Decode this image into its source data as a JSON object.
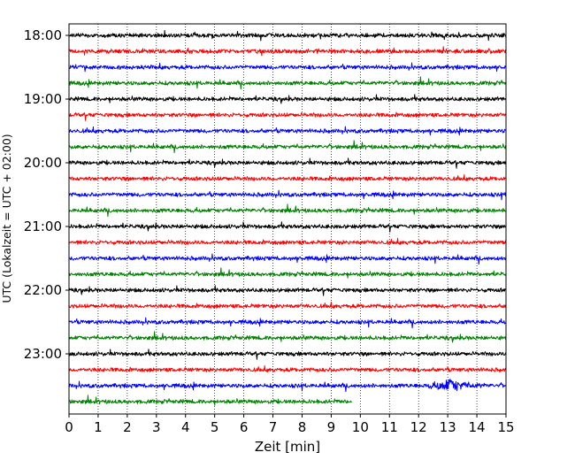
{
  "chart_data": {
    "type": "line",
    "title": "",
    "xlabel": "Zeit  [min]",
    "ylabel": "UTC (Lokalzeit = UTC + 02:00)",
    "xlim": [
      0,
      15
    ],
    "x_ticks": [
      "0",
      "1",
      "2",
      "3",
      "4",
      "5",
      "6",
      "7",
      "8",
      "9",
      "10",
      "11",
      "12",
      "13",
      "14",
      "15"
    ],
    "y_tick_labels": [
      "18:00",
      "19:00",
      "20:00",
      "21:00",
      "22:00",
      "23:00"
    ],
    "grid": "vertical dotted",
    "trace_interval_minutes": 15,
    "colors_cycle": [
      "#000000",
      "#ff0000",
      "#0000ff",
      "#008000"
    ],
    "series": [
      {
        "start": "18:00",
        "duration_min": 15
      },
      {
        "start": "18:15",
        "duration_min": 15
      },
      {
        "start": "18:30",
        "duration_min": 15
      },
      {
        "start": "18:45",
        "duration_min": 15
      },
      {
        "start": "19:00",
        "duration_min": 15
      },
      {
        "start": "19:15",
        "duration_min": 15
      },
      {
        "start": "19:30",
        "duration_min": 15
      },
      {
        "start": "19:45",
        "duration_min": 15
      },
      {
        "start": "20:00",
        "duration_min": 15
      },
      {
        "start": "20:15",
        "duration_min": 15
      },
      {
        "start": "20:30",
        "duration_min": 15
      },
      {
        "start": "20:45",
        "duration_min": 15
      },
      {
        "start": "21:00",
        "duration_min": 15
      },
      {
        "start": "21:15",
        "duration_min": 15
      },
      {
        "start": "21:30",
        "duration_min": 15
      },
      {
        "start": "21:45",
        "duration_min": 15
      },
      {
        "start": "22:00",
        "duration_min": 15
      },
      {
        "start": "22:15",
        "duration_min": 15
      },
      {
        "start": "22:30",
        "duration_min": 15
      },
      {
        "start": "22:45",
        "duration_min": 15
      },
      {
        "start": "23:00",
        "duration_min": 15
      },
      {
        "start": "23:15",
        "duration_min": 15
      },
      {
        "start": "23:30",
        "duration_min": 15,
        "event_at_min": 13.1
      },
      {
        "start": "23:45",
        "duration_min": 9.7
      }
    ]
  }
}
